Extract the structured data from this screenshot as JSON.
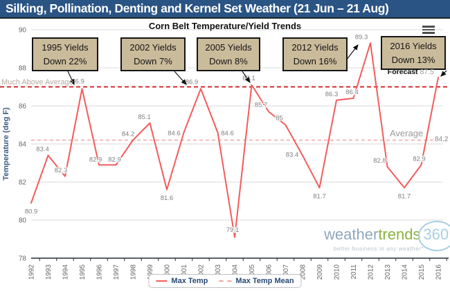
{
  "header": {
    "title": "Silking, Pollination, Denting and Kernel Set Weather (21 Jun – 21 Aug)"
  },
  "chart": {
    "forecast": {
      "label": "Forecast",
      "value": "87.5"
    },
    "colors": {
      "header_bg": "#2a5484",
      "line": "#f45b5b",
      "much_above_line": "#cc1111",
      "average_line": "#f2a3a3",
      "annotation_bg": "#cabb9b"
    }
  },
  "chart_data": {
    "type": "line",
    "title": "Corn Belt Temperature/Yield Trends",
    "x": [
      1992,
      1993,
      1994,
      1995,
      1996,
      1997,
      1998,
      1999,
      2000,
      2001,
      2002,
      2003,
      2004,
      2005,
      2006,
      2007,
      2008,
      2009,
      2010,
      2011,
      2012,
      2013,
      2014,
      2015,
      2016
    ],
    "series": [
      {
        "name": "Max Temp",
        "color": "#f45b5b",
        "values": [
          80.9,
          83.4,
          82.3,
          86.9,
          82.9,
          82.9,
          84.2,
          85.1,
          81.6,
          84.6,
          86.9,
          84.6,
          79.1,
          87.1,
          85.7,
          85,
          83.4,
          81.7,
          86.3,
          86.4,
          89.3,
          82.8,
          81.7,
          82.9,
          87.5
        ]
      }
    ],
    "reference_lines": [
      {
        "label": "Much Above Average",
        "value": 87.0
      },
      {
        "label": "Average",
        "value": 84.2
      }
    ],
    "ylabel": "Temperature (deg F)",
    "ylim": [
      78,
      90
    ],
    "yticks": [
      78,
      80,
      82,
      84,
      86,
      88,
      90
    ],
    "legend": [
      "Max Temp",
      "Max Temp Mean"
    ],
    "legend_position": "bottom",
    "grid": true,
    "last_point_is_forecast": true
  },
  "annotations": [
    {
      "line1": "1995 Yields",
      "line2": "Down 22%"
    },
    {
      "line1": "2002 Yields",
      "line2": "Down 7%"
    },
    {
      "line1": "2005 Yields",
      "line2": "Down 8%"
    },
    {
      "line1": "2012 Yields",
      "line2": "Down 16%"
    },
    {
      "line1": "2016 Yields",
      "line2": "Down 13%"
    }
  ],
  "logo": {
    "word1": "weather",
    "word2": "trends",
    "word3": "360",
    "tagline": "better business in any weather*"
  }
}
